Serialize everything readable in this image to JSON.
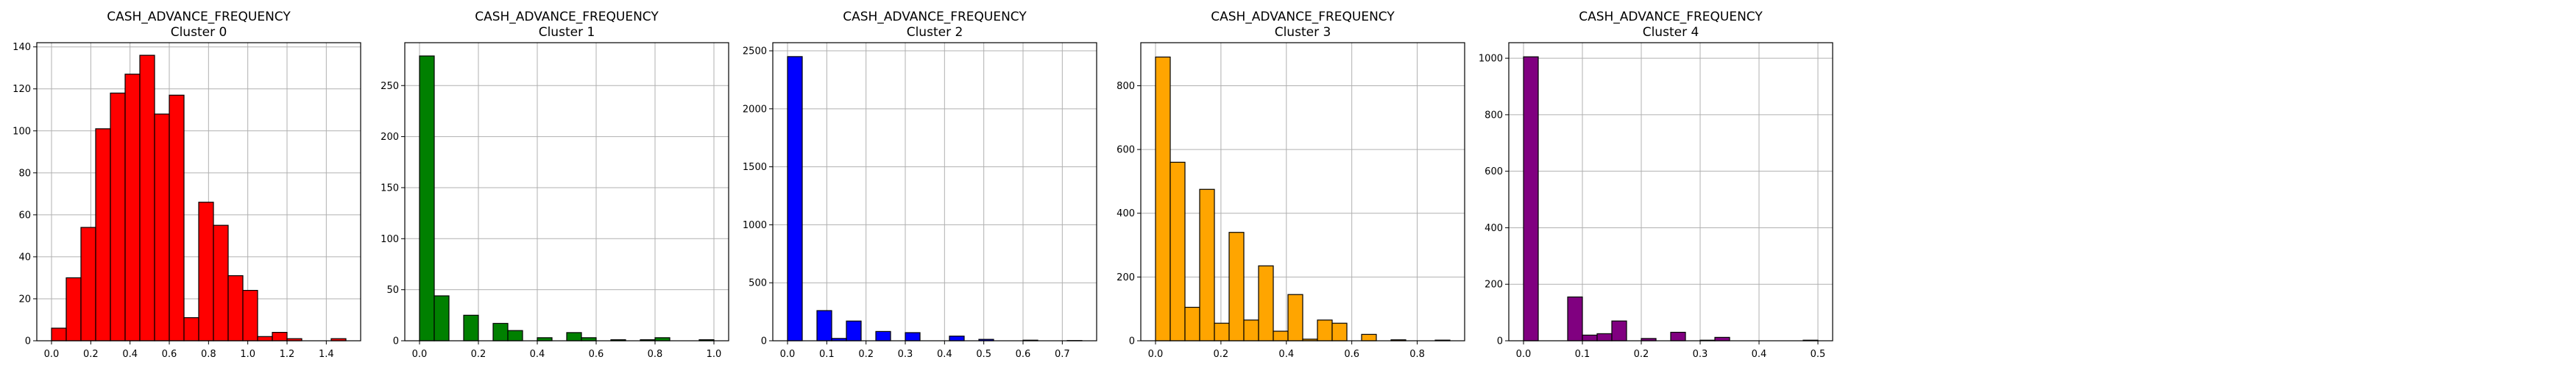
{
  "figure": {
    "background": "#ffffff"
  },
  "chart_data": [
    {
      "type": "bar",
      "title": "CASH_ADVANCE_FREQUENCY",
      "subtitle": "Cluster 0",
      "color": "#ff0000",
      "xlim": [
        -0.075,
        1.575
      ],
      "ylim": [
        0,
        142
      ],
      "xticks": [
        0.0,
        0.2,
        0.4,
        0.6,
        0.8,
        1.0,
        1.2,
        1.4
      ],
      "xtick_labels": [
        "0.0",
        "0.2",
        "0.4",
        "0.6",
        "0.8",
        "1.0",
        "1.2",
        "1.4"
      ],
      "yticks": [
        0,
        20,
        40,
        60,
        80,
        100,
        120,
        140
      ],
      "ytick_labels": [
        "0",
        "20",
        "40",
        "60",
        "80",
        "100",
        "120",
        "140"
      ],
      "grid": true,
      "bin_width": 0.075,
      "bins_start": [
        0.0,
        0.075,
        0.15,
        0.225,
        0.3,
        0.375,
        0.45,
        0.525,
        0.6,
        0.675,
        0.75,
        0.825,
        0.9,
        0.975,
        1.05,
        1.125,
        1.2,
        1.275,
        1.35,
        1.425
      ],
      "values": [
        6,
        30,
        54,
        101,
        118,
        127,
        136,
        108,
        117,
        11,
        66,
        55,
        31,
        24,
        2,
        4,
        1,
        0,
        0,
        1
      ]
    },
    {
      "type": "bar",
      "title": "CASH_ADVANCE_FREQUENCY",
      "subtitle": "Cluster 1",
      "color": "#008000",
      "xlim": [
        -0.05,
        1.05
      ],
      "ylim": [
        0,
        292
      ],
      "xticks": [
        0.0,
        0.2,
        0.4,
        0.6,
        0.8,
        1.0
      ],
      "xtick_labels": [
        "0.0",
        "0.2",
        "0.4",
        "0.6",
        "0.8",
        "1.0"
      ],
      "yticks": [
        0,
        50,
        100,
        150,
        200,
        250
      ],
      "ytick_labels": [
        "0",
        "50",
        "100",
        "150",
        "200",
        "250"
      ],
      "grid": true,
      "bin_width": 0.05,
      "bins_start": [
        0.0,
        0.05,
        0.1,
        0.15,
        0.2,
        0.25,
        0.3,
        0.35,
        0.4,
        0.45,
        0.5,
        0.55,
        0.6,
        0.65,
        0.7,
        0.75,
        0.8,
        0.85,
        0.9,
        0.95
      ],
      "values": [
        279,
        44,
        0,
        25,
        0,
        17,
        10,
        0,
        3,
        0,
        8,
        3,
        0,
        1,
        0,
        1,
        3,
        0,
        0,
        1
      ]
    },
    {
      "type": "bar",
      "title": "CASH_ADVANCE_FREQUENCY",
      "subtitle": "Cluster 2",
      "color": "#0000ff",
      "xlim": [
        -0.0375,
        0.7875
      ],
      "ylim": [
        0,
        2570
      ],
      "xticks": [
        0.0,
        0.1,
        0.2,
        0.3,
        0.4,
        0.5,
        0.6,
        0.7
      ],
      "xtick_labels": [
        "0.0",
        "0.1",
        "0.2",
        "0.3",
        "0.4",
        "0.5",
        "0.6",
        "0.7"
      ],
      "yticks": [
        0,
        500,
        1000,
        1500,
        2000,
        2500
      ],
      "ytick_labels": [
        "0",
        "500",
        "1000",
        "1500",
        "2000",
        "2500"
      ],
      "grid": true,
      "bin_width": 0.0375,
      "bins_start": [
        0.0,
        0.0375,
        0.075,
        0.1125,
        0.15,
        0.1875,
        0.225,
        0.2625,
        0.3,
        0.3375,
        0.375,
        0.4125,
        0.45,
        0.4875,
        0.525,
        0.5625,
        0.6,
        0.6375,
        0.675,
        0.7125
      ],
      "values": [
        2450,
        0,
        260,
        20,
        170,
        0,
        80,
        0,
        70,
        0,
        0,
        40,
        0,
        12,
        0,
        0,
        5,
        0,
        0,
        2
      ]
    },
    {
      "type": "bar",
      "title": "CASH_ADVANCE_FREQUENCY",
      "subtitle": "Cluster 3",
      "color": "#ffa500",
      "xlim": [
        -0.045,
        0.945
      ],
      "ylim": [
        0,
        935
      ],
      "xticks": [
        0.0,
        0.2,
        0.4,
        0.6,
        0.8
      ],
      "xtick_labels": [
        "0.0",
        "0.2",
        "0.4",
        "0.6",
        "0.8"
      ],
      "yticks": [
        0,
        200,
        400,
        600,
        800
      ],
      "ytick_labels": [
        "0",
        "200",
        "400",
        "600",
        "800"
      ],
      "grid": true,
      "bin_width": 0.045,
      "bins_start": [
        0.0,
        0.045,
        0.09,
        0.135,
        0.18,
        0.225,
        0.27,
        0.315,
        0.36,
        0.405,
        0.45,
        0.495,
        0.54,
        0.585,
        0.63,
        0.675,
        0.72,
        0.765,
        0.81,
        0.855
      ],
      "values": [
        890,
        560,
        105,
        475,
        55,
        340,
        65,
        235,
        30,
        145,
        5,
        65,
        55,
        0,
        20,
        0,
        3,
        0,
        0,
        2
      ]
    },
    {
      "type": "bar",
      "title": "CASH_ADVANCE_FREQUENCY",
      "subtitle": "Cluster 4",
      "color": "#800080",
      "xlim": [
        -0.025,
        0.525
      ],
      "ylim": [
        0,
        1055
      ],
      "xticks": [
        0.0,
        0.1,
        0.2,
        0.3,
        0.4,
        0.5
      ],
      "xtick_labels": [
        "0.0",
        "0.1",
        "0.2",
        "0.3",
        "0.4",
        "0.5"
      ],
      "yticks": [
        0,
        200,
        400,
        600,
        800,
        1000
      ],
      "ytick_labels": [
        "0",
        "200",
        "400",
        "600",
        "800",
        "1000"
      ],
      "grid": true,
      "bin_width": 0.025,
      "bins_start": [
        0.0,
        0.025,
        0.05,
        0.075,
        0.1,
        0.125,
        0.15,
        0.175,
        0.2,
        0.225,
        0.25,
        0.275,
        0.3,
        0.325,
        0.35,
        0.375,
        0.4,
        0.425,
        0.45,
        0.475
      ],
      "values": [
        1005,
        0,
        0,
        155,
        20,
        25,
        70,
        0,
        8,
        0,
        30,
        0,
        2,
        12,
        0,
        0,
        0,
        0,
        0,
        2
      ]
    }
  ]
}
